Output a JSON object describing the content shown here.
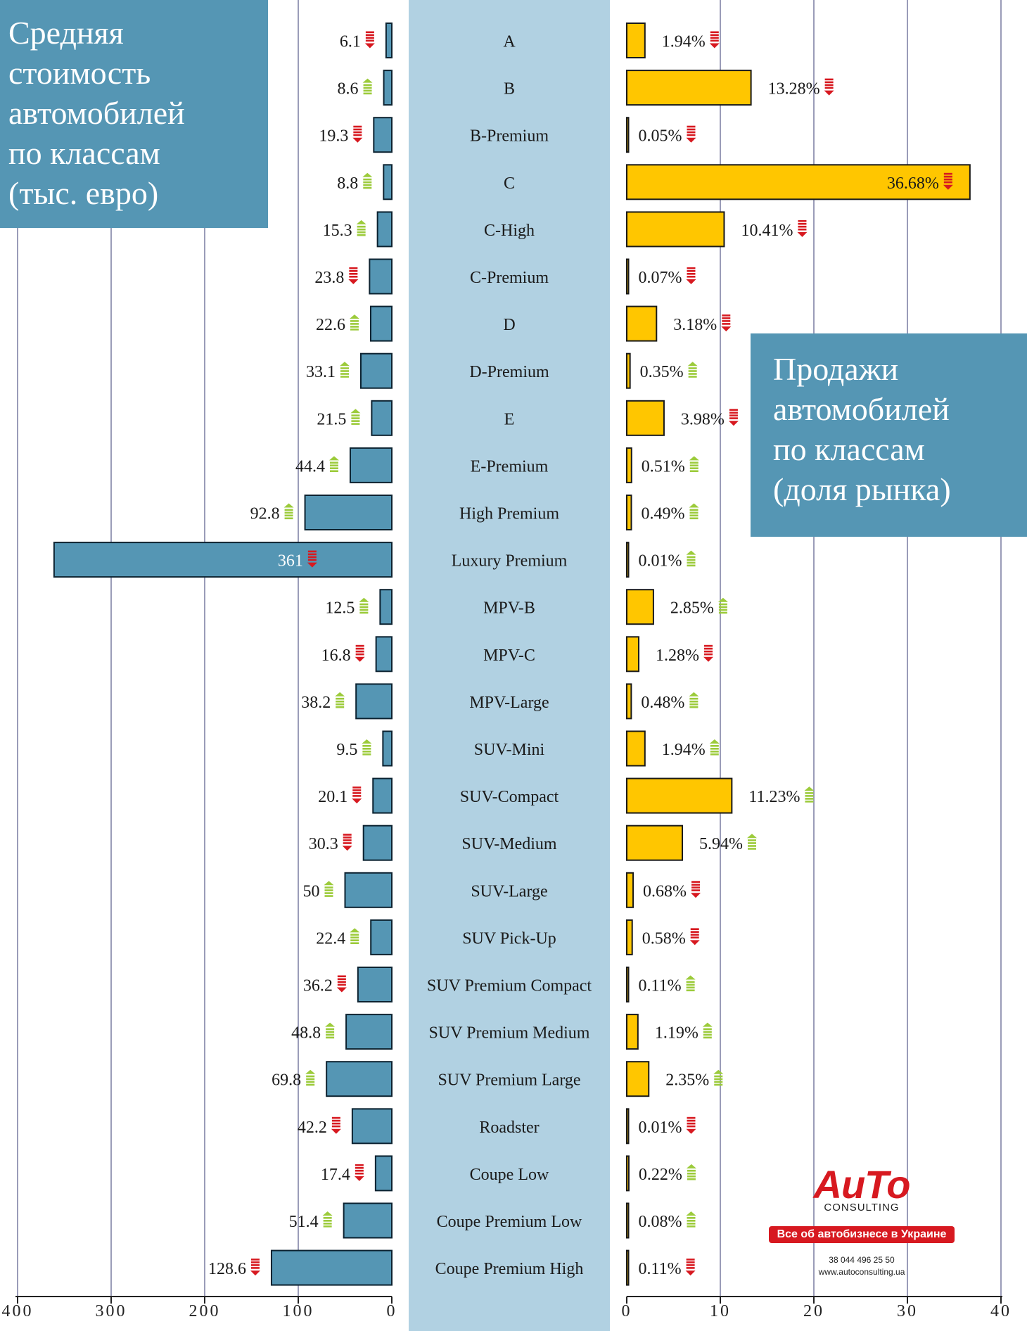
{
  "left_title_lines": [
    "Средняя",
    "стоимость",
    "автомобилей",
    "по классам",
    "(тыс. евро)"
  ],
  "right_title_lines": [
    "Продажи",
    "автомобилей",
    "по классам",
    "(доля рынка)"
  ],
  "logo": {
    "brand": "AuTo",
    "sub": "CONSULTING",
    "tagline": "Все об автобизнесе в Украине",
    "phone": "38 044 496 25 50",
    "website": "www.autoconsulting.ua"
  },
  "colors": {
    "price_bar": "#5596b4",
    "share_bar": "#ffc600",
    "center_band": "#b1d1e2",
    "title_box": "#5596b4",
    "grid": "#9a9cb8",
    "arrow_up": "#9ccb3b",
    "arrow_down": "#d71920"
  },
  "chart_data": [
    {
      "type": "bar",
      "orientation": "horizontal",
      "direction": "right-to-left",
      "title": "Средняя стоимость автомобилей по классам (тыс. евро)",
      "xlim": [
        0,
        400
      ],
      "ticks": [
        "0",
        "100",
        "200",
        "300",
        "400"
      ],
      "categories": [
        "A",
        "B",
        "B-Premium",
        "C",
        "C-High",
        "C-Premium",
        "D",
        "D-Premium",
        "E",
        "E-Premium",
        "High Premium",
        "Luxury Premium",
        "MPV-B",
        "MPV-C",
        "MPV-Large",
        "SUV-Mini",
        "SUV-Compact",
        "SUV-Medium",
        "SUV-Large",
        "SUV Pick-Up",
        "SUV Premium Compact",
        "SUV Premium Medium",
        "SUV Premium Large",
        "Roadster",
        "Coupe Low",
        "Coupe Premium Low",
        "Coupe Premium High"
      ],
      "values": [
        6.1,
        8.6,
        19.3,
        8.8,
        15.3,
        23.8,
        22.6,
        33.1,
        21.5,
        44.4,
        92.8,
        361,
        12.5,
        16.8,
        38.2,
        9.5,
        20.1,
        30.3,
        50,
        22.4,
        36.2,
        48.8,
        69.8,
        42.2,
        17.4,
        51.4,
        128.6
      ],
      "labels": [
        "6.1",
        "8.6",
        "19.3",
        "8.8",
        "15.3",
        "23.8",
        "22.6",
        "33.1",
        "21.5",
        "44.4",
        "92.8",
        "361",
        "12.5",
        "16.8",
        "38.2",
        "9.5",
        "20.1",
        "30.3",
        "50",
        "22.4",
        "36.2",
        "48.8",
        "69.8",
        "42.2",
        "17.4",
        "51.4",
        "128.6"
      ],
      "trend": [
        "down",
        "up",
        "down",
        "up",
        "up",
        "down",
        "up",
        "up",
        "up",
        "up",
        "up",
        "down",
        "up",
        "down",
        "up",
        "up",
        "down",
        "down",
        "up",
        "up",
        "down",
        "up",
        "up",
        "down",
        "down",
        "up",
        "down"
      ]
    },
    {
      "type": "bar",
      "orientation": "horizontal",
      "direction": "left-to-right",
      "title": "Продажи автомобилей по классам (доля рынка)",
      "xlim": [
        0,
        40
      ],
      "ticks": [
        "0",
        "10",
        "20",
        "30",
        "40"
      ],
      "categories": [
        "A",
        "B",
        "B-Premium",
        "C",
        "C-High",
        "C-Premium",
        "D",
        "D-Premium",
        "E",
        "E-Premium",
        "High Premium",
        "Luxury Premium",
        "MPV-B",
        "MPV-C",
        "MPV-Large",
        "SUV-Mini",
        "SUV-Compact",
        "SUV-Medium",
        "SUV-Large",
        "SUV Pick-Up",
        "SUV Premium Compact",
        "SUV Premium Medium",
        "SUV Premium Large",
        "Roadster",
        "Coupe Low",
        "Coupe Premium Low",
        "Coupe Premium High"
      ],
      "values": [
        1.94,
        13.28,
        0.05,
        36.68,
        10.41,
        0.07,
        3.18,
        0.35,
        3.98,
        0.51,
        0.49,
        0.01,
        2.85,
        1.28,
        0.48,
        1.94,
        11.23,
        5.94,
        0.68,
        0.58,
        0.11,
        1.19,
        2.35,
        0.01,
        0.22,
        0.08,
        0.11
      ],
      "labels": [
        "1.94%",
        "13.28%",
        "0.05%",
        "36.68%",
        "10.41%",
        "0.07%",
        "3.18%",
        "0.35%",
        "3.98%",
        "0.51%",
        "0.49%",
        "0.01%",
        "2.85%",
        "1.28%",
        "0.48%",
        "1.94%",
        "11.23%",
        "5.94%",
        "0.68%",
        "0.58%",
        "0.11%",
        "1.19%",
        "2.35%",
        "0.01%",
        "0.22%",
        "0.08%",
        "0.11%"
      ],
      "trend": [
        "down",
        "down",
        "down",
        "down",
        "down",
        "down",
        "down",
        "up",
        "down",
        "up",
        "up",
        "up",
        "up",
        "down",
        "up",
        "up",
        "up",
        "up",
        "down",
        "down",
        "up",
        "up",
        "up",
        "down",
        "up",
        "up",
        "down"
      ]
    }
  ]
}
